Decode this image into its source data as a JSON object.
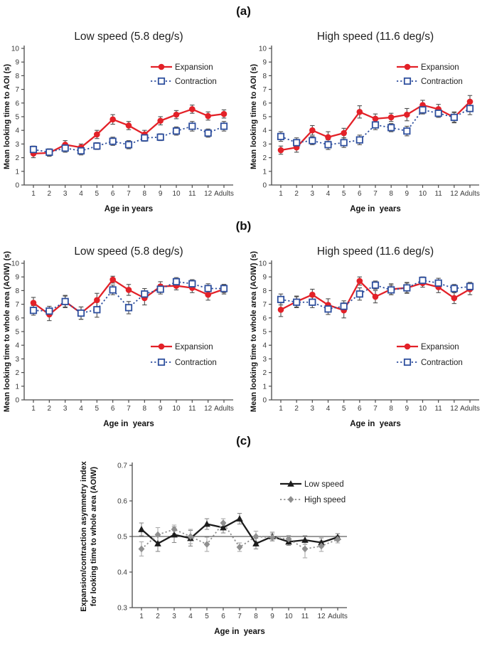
{
  "panels": {
    "a": {
      "label": "(a)"
    },
    "b": {
      "label": "(b)"
    },
    "c": {
      "label": "(c)"
    }
  },
  "colors": {
    "expansion_red": "#e32128",
    "contraction_blue": "#2e4f9e",
    "low_speed_black": "#1c1c1c",
    "high_speed_gray": "#8f8f8f",
    "error_bar_gray": "#4d4d4d",
    "axis_gray": "#4c4c4c"
  },
  "chart_data": [
    {
      "id": "a_low",
      "panel": "a",
      "type": "line",
      "title": "Low speed (5.8 deg/s)",
      "xlabel": "Age in years",
      "ylabel": "Mean looking time to AOI (s)",
      "ylim": [
        0,
        10
      ],
      "yticks": [
        0,
        1,
        2,
        3,
        4,
        5,
        6,
        7,
        8,
        9,
        10
      ],
      "categories": [
        "1",
        "2",
        "3",
        "4",
        "5",
        "6",
        "7",
        "8",
        "9",
        "10",
        "11",
        "12",
        "Adults"
      ],
      "legend_position": "upper-right-inside",
      "series": [
        {
          "name": "Expansion",
          "marker": "circle",
          "dash": "solid",
          "color": "#e32128",
          "error_color": "#4d4d4d",
          "values": [
            2.3,
            2.35,
            2.95,
            2.75,
            3.7,
            4.8,
            4.35,
            3.7,
            4.7,
            5.15,
            5.55,
            5.05,
            5.2
          ],
          "errors": [
            0.3,
            0.25,
            0.3,
            0.25,
            0.3,
            0.35,
            0.3,
            0.3,
            0.3,
            0.3,
            0.3,
            0.3,
            0.3
          ]
        },
        {
          "name": "Contraction",
          "marker": "square",
          "dash": "dotted",
          "color": "#2e4f9e",
          "error_color": "#4d4d4d",
          "values": [
            2.6,
            2.4,
            2.7,
            2.5,
            2.85,
            3.2,
            2.95,
            3.45,
            3.5,
            3.95,
            4.3,
            3.8,
            4.3
          ],
          "errors": [
            0.25,
            0.25,
            0.3,
            0.3,
            0.25,
            0.3,
            0.3,
            0.25,
            0.25,
            0.3,
            0.35,
            0.3,
            0.35
          ]
        }
      ]
    },
    {
      "id": "a_high",
      "panel": "a",
      "type": "line",
      "title": "High speed (11.6 deg/s)",
      "xlabel": "Age in  years",
      "ylabel": "Mean looking time to AOI (s)",
      "ylim": [
        0,
        10
      ],
      "yticks": [
        0,
        1,
        2,
        3,
        4,
        5,
        6,
        7,
        8,
        9,
        10
      ],
      "categories": [
        "1",
        "2",
        "3",
        "4",
        "5",
        "6",
        "7",
        "8",
        "9",
        "10",
        "11",
        "12",
        "Adults"
      ],
      "legend_position": "upper-right-inside",
      "series": [
        {
          "name": "Expansion",
          "marker": "circle",
          "dash": "solid",
          "color": "#e32128",
          "error_color": "#4d4d4d",
          "values": [
            2.55,
            2.75,
            4.0,
            3.5,
            3.8,
            5.35,
            4.85,
            4.95,
            5.15,
            5.85,
            5.55,
            4.95,
            6.1
          ],
          "errors": [
            0.3,
            0.35,
            0.35,
            0.4,
            0.35,
            0.45,
            0.35,
            0.3,
            0.45,
            0.35,
            0.35,
            0.4,
            0.45
          ]
        },
        {
          "name": "Contraction",
          "marker": "square",
          "dash": "dotted",
          "color": "#2e4f9e",
          "error_color": "#4d4d4d",
          "values": [
            3.55,
            3.1,
            3.25,
            2.95,
            3.1,
            3.3,
            4.4,
            4.2,
            3.95,
            5.5,
            5.25,
            4.95,
            5.6
          ],
          "errors": [
            0.35,
            0.35,
            0.3,
            0.35,
            0.35,
            0.35,
            0.35,
            0.3,
            0.35,
            0.3,
            0.3,
            0.35,
            0.45
          ]
        }
      ]
    },
    {
      "id": "b_low",
      "panel": "b",
      "type": "line",
      "title": "Low speed (5.8 deg/s)",
      "xlabel": "Age in  years",
      "ylabel": "Mean looking time to whole area (AOIW) (s)",
      "ylim": [
        0,
        10
      ],
      "yticks": [
        0,
        1,
        2,
        3,
        4,
        5,
        6,
        7,
        8,
        9,
        10
      ],
      "categories": [
        "1",
        "2",
        "3",
        "4",
        "5",
        "6",
        "7",
        "8",
        "9",
        "10",
        "11",
        "12",
        "Adults"
      ],
      "legend_position": "mid-right-inside",
      "series": [
        {
          "name": "Expansion",
          "marker": "circle",
          "dash": "solid",
          "color": "#e32128",
          "error_color": "#4d4d4d",
          "values": [
            7.1,
            6.25,
            7.2,
            6.35,
            7.3,
            8.8,
            8.05,
            7.45,
            8.3,
            8.35,
            8.2,
            7.7,
            8.1
          ],
          "errors": [
            0.4,
            0.45,
            0.45,
            0.45,
            0.5,
            0.25,
            0.4,
            0.5,
            0.35,
            0.3,
            0.35,
            0.4,
            0.35
          ]
        },
        {
          "name": "Contraction",
          "marker": "square",
          "dash": "dotted",
          "color": "#2e4f9e",
          "error_color": "#4d4d4d",
          "values": [
            6.55,
            6.5,
            7.2,
            6.35,
            6.6,
            8.05,
            6.75,
            7.75,
            8.1,
            8.65,
            8.5,
            8.15,
            8.15
          ],
          "errors": [
            0.35,
            0.35,
            0.4,
            0.45,
            0.55,
            0.35,
            0.45,
            0.4,
            0.35,
            0.3,
            0.3,
            0.35,
            0.3
          ]
        }
      ]
    },
    {
      "id": "b_high",
      "panel": "b",
      "type": "line",
      "title": "High speed (11.6 deg/s)",
      "xlabel": "Age in  years",
      "ylabel": "Mean looking time to whole area (AOIW) (s)",
      "ylim": [
        0,
        10
      ],
      "yticks": [
        0,
        1,
        2,
        3,
        4,
        5,
        6,
        7,
        8,
        9,
        10
      ],
      "categories": [
        "1",
        "2",
        "3",
        "4",
        "5",
        "6",
        "7",
        "8",
        "9",
        "10",
        "11",
        "12",
        "Adults"
      ],
      "legend_position": "mid-right-inside",
      "series": [
        {
          "name": "Expansion",
          "marker": "circle",
          "dash": "solid",
          "color": "#e32128",
          "error_color": "#4d4d4d",
          "values": [
            6.6,
            7.2,
            7.7,
            6.95,
            6.55,
            8.7,
            7.55,
            8.1,
            8.2,
            8.55,
            8.25,
            7.45,
            8.1
          ],
          "errors": [
            0.5,
            0.4,
            0.4,
            0.45,
            0.55,
            0.3,
            0.45,
            0.4,
            0.4,
            0.3,
            0.4,
            0.4,
            0.4
          ]
        },
        {
          "name": "Contraction",
          "marker": "square",
          "dash": "dotted",
          "color": "#2e4f9e",
          "error_color": "#4d4d4d",
          "values": [
            7.35,
            7.15,
            7.15,
            6.65,
            6.85,
            7.75,
            8.4,
            8.05,
            8.2,
            8.75,
            8.55,
            8.15,
            8.3
          ],
          "errors": [
            0.4,
            0.4,
            0.4,
            0.4,
            0.4,
            0.45,
            0.3,
            0.35,
            0.35,
            0.25,
            0.35,
            0.3,
            0.3
          ]
        }
      ]
    },
    {
      "id": "c_index",
      "panel": "c",
      "type": "line",
      "title": "",
      "xlabel": "Age in  years",
      "ylabel": [
        "Expansion/contraction asymmetry index",
        "for looking time to whole area (AOIW)"
      ],
      "ylim": [
        0.3,
        0.7
      ],
      "yticks": [
        "0.3",
        "0.4",
        "0.5",
        "0.6",
        "0.7"
      ],
      "refline": 0.5,
      "categories": [
        "1",
        "2",
        "3",
        "4",
        "5",
        "6",
        "7",
        "8",
        "9",
        "10",
        "11",
        "12",
        "Adults"
      ],
      "legend_position": "upper-right-inside",
      "series": [
        {
          "name": "Low speed",
          "marker": "triangle",
          "dash": "solid",
          "color": "#1c1c1c",
          "error_color": "#8a8a8a",
          "values": [
            0.52,
            0.48,
            0.505,
            0.495,
            0.535,
            0.525,
            0.55,
            0.48,
            0.5,
            0.485,
            0.49,
            0.483,
            0.498
          ],
          "errors": [
            0.018,
            0.022,
            0.022,
            0.022,
            0.015,
            0.015,
            0.015,
            0.015,
            0.012,
            0.01,
            0.012,
            0.013,
            0.01
          ]
        },
        {
          "name": "High speed",
          "marker": "diamond",
          "dash": "dotted",
          "color": "#8f8f8f",
          "error_color": "#ababab",
          "values": [
            0.465,
            0.505,
            0.52,
            0.5,
            0.478,
            0.538,
            0.47,
            0.5,
            0.497,
            0.493,
            0.465,
            0.473,
            0.492
          ],
          "errors": [
            0.02,
            0.02,
            0.012,
            0.02,
            0.02,
            0.012,
            0.012,
            0.015,
            0.01,
            0.01,
            0.025,
            0.015,
            0.01
          ]
        }
      ]
    }
  ]
}
